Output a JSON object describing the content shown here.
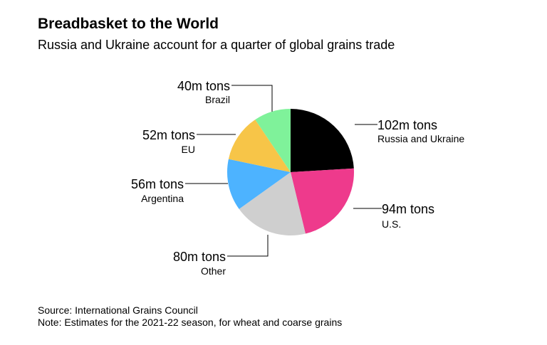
{
  "header": {
    "title": "Breadbasket to the World",
    "subtitle": "Russia and Ukraine account for a quarter of global grains trade"
  },
  "chart_data": {
    "type": "pie",
    "title": "Breadbasket to the World",
    "subtitle": "Russia and Ukraine account for a quarter of global grains trade",
    "unit": "m tons",
    "slices": [
      {
        "name": "Russia and Ukraine",
        "value": 102,
        "label": "102m tons",
        "color": "#000000"
      },
      {
        "name": "U.S.",
        "value": 94,
        "label": "94m tons",
        "color": "#ee3a8c"
      },
      {
        "name": "Other",
        "value": 80,
        "label": "80m tons",
        "color": "#cfcfcf"
      },
      {
        "name": "Argentina",
        "value": 56,
        "label": "56m tons",
        "color": "#4db3ff"
      },
      {
        "name": "EU",
        "value": 52,
        "label": "52m tons",
        "color": "#f7c548"
      },
      {
        "name": "Brazil",
        "value": 40,
        "label": "40m tons",
        "color": "#7ff29a"
      }
    ]
  },
  "footer": {
    "source": "Source: International Grains Council",
    "note": "Note: Estimates for the 2021-22 season, for wheat and coarse grains"
  }
}
